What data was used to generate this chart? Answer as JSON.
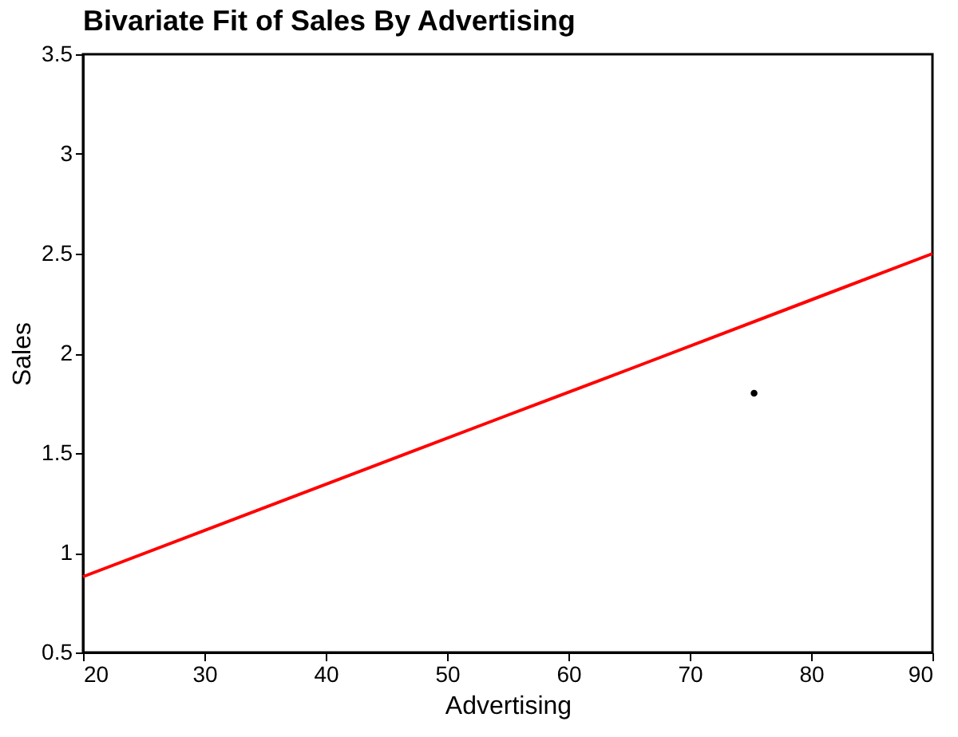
{
  "chart_data": {
    "type": "scatter",
    "title": "Bivariate Fit of Sales By Advertising",
    "xlabel": "Advertising",
    "ylabel": "Sales",
    "xlim": [
      20,
      90
    ],
    "xticks": [
      20,
      30,
      40,
      50,
      60,
      70,
      80,
      90
    ],
    "ylim": [
      0.5,
      3.5
    ],
    "yticks": [
      0.5,
      1,
      1.5,
      2,
      2.5,
      3,
      3.5
    ],
    "grid": false,
    "series": [
      {
        "type": "scatter",
        "color": "#000000",
        "marker": "circle",
        "x": [
          75.3
        ],
        "values": [
          1.8
        ]
      },
      {
        "type": "line",
        "color": "#ff0000",
        "x": [
          20,
          55,
          65,
          90
        ],
        "values": [
          0.88,
          1.69,
          1.92,
          2.5
        ],
        "line_style": "solid"
      }
    ]
  }
}
